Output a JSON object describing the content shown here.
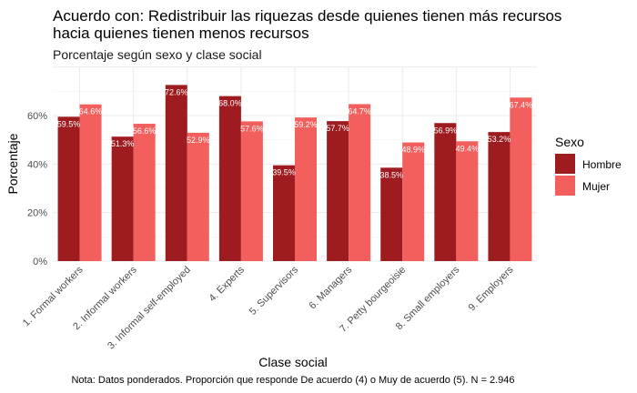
{
  "chart_data": {
    "type": "bar",
    "title_line1": "Acuerdo con: Redistribuir las riquezas desde quienes tienen más recursos",
    "title_line2": "hacia quienes tienen menos recursos",
    "subtitle": "Porcentaje según sexo y clase social",
    "xlabel": "Clase social",
    "ylabel": "Porcentaje",
    "caption": "Nota: Datos ponderados. Proporción que responde De acuerdo (4) o Muy de acuerdo (5). N = 2.946",
    "ylim": [
      0,
      80
    ],
    "yticks": [
      0,
      20,
      40,
      60
    ],
    "ytick_labels": [
      "0%",
      "20%",
      "40%",
      "60%"
    ],
    "grid": true,
    "legend": {
      "title": "Sexo",
      "placement": "right"
    },
    "categories": [
      "1. Formal workers",
      "2. Informal workers",
      "3. Informal self-employed",
      "4. Experts",
      "5. Supervisors",
      "6. Managers",
      "7. Petty bourgeoisie",
      "8. Small employers",
      "9. Employers"
    ],
    "series": [
      {
        "name": "Hombre",
        "color": "#9e1b20",
        "values": [
          59.5,
          51.3,
          72.6,
          68.0,
          39.5,
          57.7,
          38.5,
          56.9,
          53.2
        ],
        "labels": [
          "59.5%",
          "51.3%",
          "72.6%",
          "68.0%",
          "39.5%",
          "57.7%",
          "38.5%",
          "56.9%",
          "53.2%"
        ]
      },
      {
        "name": "Mujer",
        "color": "#f25f5c",
        "values": [
          64.6,
          56.6,
          52.9,
          57.6,
          59.2,
          64.7,
          48.9,
          49.4,
          67.4
        ],
        "labels": [
          "64.6%",
          "56.6%",
          "52.9%",
          "57.6%",
          "59.2%",
          "64.7%",
          "48.9%",
          "49.4%",
          "67.4%"
        ]
      }
    ]
  }
}
